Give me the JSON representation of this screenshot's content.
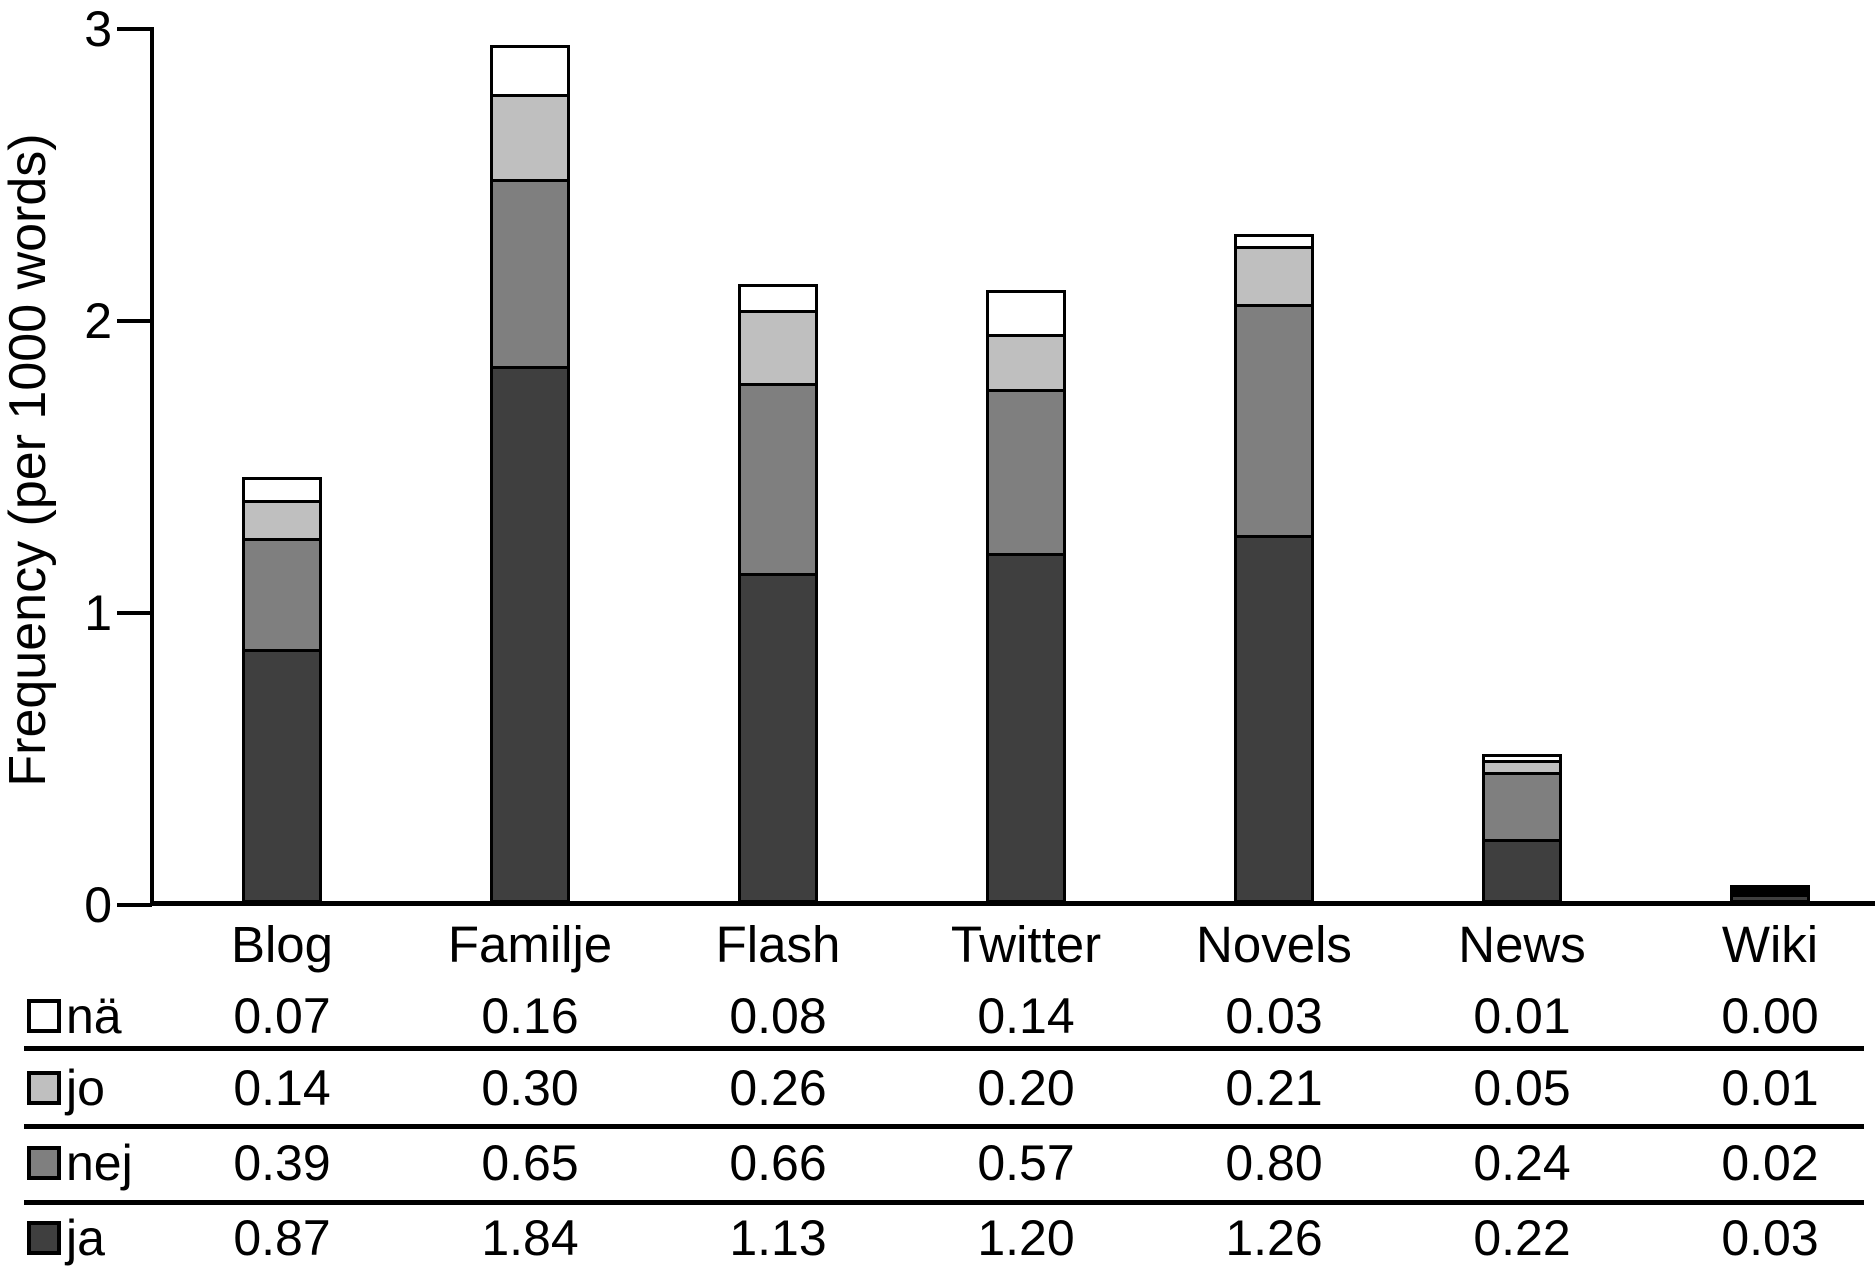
{
  "chart_data": {
    "type": "bar",
    "stacked": true,
    "title": "",
    "xlabel": "",
    "ylabel": "Frequency (per 1000 words)",
    "ylim": [
      0,
      3
    ],
    "yticks": [
      "0",
      "1",
      "2",
      "3"
    ],
    "grid": false,
    "legend_position": "table-rows-below-left",
    "categories": [
      "Blog",
      "Familje",
      "Flash",
      "Twitter",
      "Novels",
      "News",
      "Wiki"
    ],
    "series": [
      {
        "name": "ja",
        "color": "#3f3f3f",
        "values": [
          0.87,
          1.84,
          1.13,
          1.2,
          1.26,
          0.22,
          0.03
        ]
      },
      {
        "name": "nej",
        "color": "#7f7f7f",
        "values": [
          0.39,
          0.65,
          0.66,
          0.57,
          0.8,
          0.24,
          0.02
        ]
      },
      {
        "name": "jo",
        "color": "#bfbfbf",
        "values": [
          0.14,
          0.3,
          0.26,
          0.2,
          0.21,
          0.05,
          0.01
        ]
      },
      {
        "name": "nä",
        "color": "#ffffff",
        "values": [
          0.07,
          0.16,
          0.08,
          0.14,
          0.03,
          0.01,
          0.0
        ]
      }
    ]
  },
  "table": {
    "rows": [
      {
        "label": "nä",
        "swatch": "#ffffff",
        "values": [
          "0.07",
          "0.16",
          "0.08",
          "0.14",
          "0.03",
          "0.01",
          "0.00"
        ]
      },
      {
        "label": "jo",
        "swatch": "#bfbfbf",
        "values": [
          "0.14",
          "0.30",
          "0.26",
          "0.20",
          "0.21",
          "0.05",
          "0.01"
        ]
      },
      {
        "label": "nej",
        "swatch": "#7f7f7f",
        "values": [
          "0.39",
          "0.65",
          "0.66",
          "0.57",
          "0.80",
          "0.24",
          "0.02"
        ]
      },
      {
        "label": "ja",
        "swatch": "#3f3f3f",
        "values": [
          "0.87",
          "1.84",
          "1.13",
          "1.20",
          "1.26",
          "0.22",
          "0.03"
        ]
      }
    ]
  }
}
